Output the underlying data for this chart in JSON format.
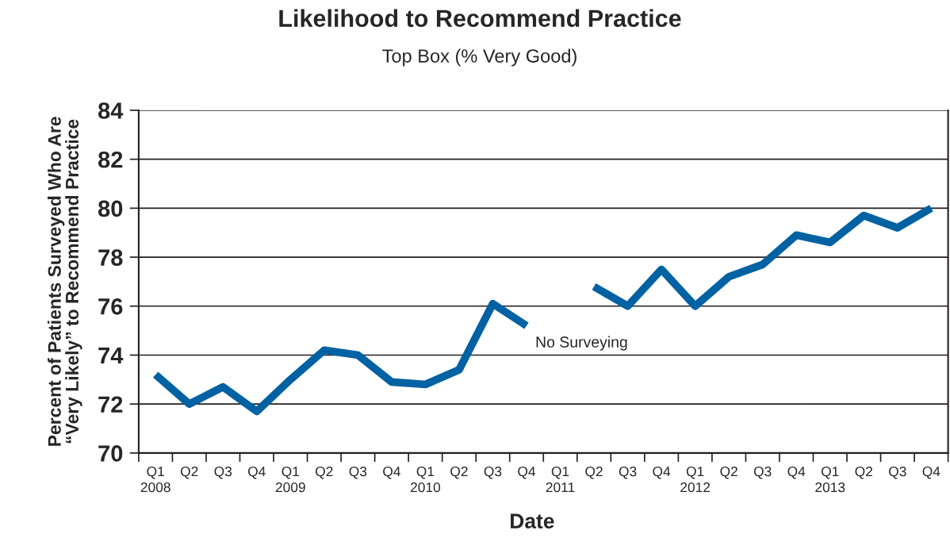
{
  "chart_data": {
    "type": "line",
    "title": "Likelihood to Recommend Practice",
    "subtitle": "Top Box (% Very Good)",
    "xlabel": "Date",
    "ylabel": "Percent of Patients Surveyed Who Are\n“Very Likely” to Recommend Practice",
    "categories": [
      "Q1\n2008",
      "Q2",
      "Q3",
      "Q4",
      "Q1\n2009",
      "Q2",
      "Q3",
      "Q4",
      "Q1\n2010",
      "Q2",
      "Q3",
      "Q4",
      "Q1\n2011",
      "Q2",
      "Q3",
      "Q4",
      "Q1\n2012",
      "Q2",
      "Q3",
      "Q4",
      "Q1\n2013",
      "Q2",
      "Q3",
      "Q4"
    ],
    "series": [
      {
        "color": "#0062a3",
        "values": [
          73.2,
          72.0,
          72.7,
          71.7,
          73.0,
          74.2,
          74.0,
          72.9,
          72.8,
          73.4,
          76.1,
          75.2,
          null,
          76.8,
          76.0,
          77.5,
          76.0,
          77.2,
          77.7,
          78.9,
          78.6,
          79.7,
          79.2,
          80.0
        ]
      }
    ],
    "ylim": [
      70,
      84
    ],
    "yticks": [
      70,
      72,
      74,
      76,
      78,
      80,
      82,
      84
    ],
    "grid": "y",
    "legend": false,
    "marker": "none",
    "line_style": "solid",
    "annotations": [
      "No Surveying"
    ]
  }
}
